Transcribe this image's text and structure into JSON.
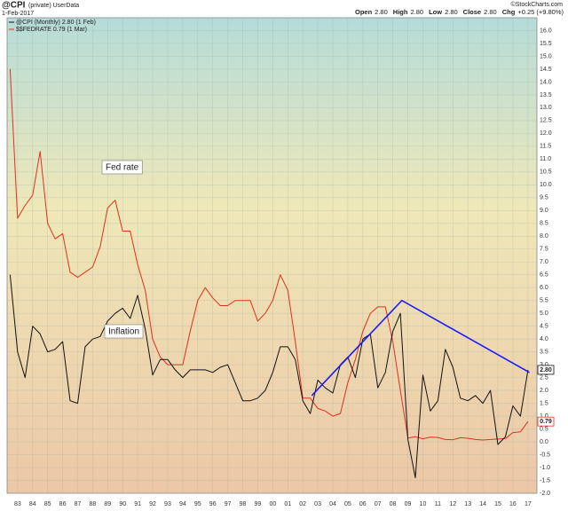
{
  "chart_data": {
    "type": "line",
    "title": "@CPI",
    "subtitle": "(private) UserData",
    "date": "1-Feb-2017",
    "credit": "©StockCharts.com",
    "quote": [
      {
        "label": "Open",
        "value": "2.80"
      },
      {
        "label": "High",
        "value": "2.80"
      },
      {
        "label": "Low",
        "value": "2.80"
      },
      {
        "label": "Close",
        "value": "2.80"
      },
      {
        "label": "Chg",
        "value": "+0.25 (+9.80%)"
      }
    ],
    "x": [
      1982.5,
      1983.0,
      1983.5,
      1984.0,
      1984.5,
      1985.0,
      1985.5,
      1986.0,
      1986.5,
      1987.0,
      1987.5,
      1988.0,
      1988.5,
      1989.0,
      1989.5,
      1990.0,
      1990.5,
      1991.0,
      1991.5,
      1992.0,
      1992.5,
      1993.0,
      1993.5,
      1994.0,
      1994.5,
      1995.0,
      1995.5,
      1996.0,
      1996.5,
      1997.0,
      1997.5,
      1998.0,
      1998.5,
      1999.0,
      1999.5,
      2000.0,
      2000.5,
      2001.0,
      2001.5,
      2002.0,
      2002.5,
      2003.0,
      2003.5,
      2004.0,
      2004.5,
      2005.0,
      2005.5,
      2006.0,
      2006.5,
      2007.0,
      2007.5,
      2008.0,
      2008.5,
      2009.0,
      2009.5,
      2010.0,
      2010.5,
      2011.0,
      2011.5,
      2012.0,
      2012.5,
      2013.0,
      2013.5,
      2014.0,
      2014.5,
      2015.0,
      2015.5,
      2016.0,
      2016.5,
      2017.0
    ],
    "series": [
      {
        "name": "@CPI (Monthly) 2.80 (1 Feb)",
        "color": "#111111",
        "last_label": "2.80",
        "values": [
          6.5,
          3.5,
          2.5,
          4.5,
          4.2,
          3.5,
          3.6,
          3.9,
          1.6,
          1.5,
          3.7,
          4.0,
          4.1,
          4.7,
          5.0,
          5.2,
          4.8,
          5.7,
          4.4,
          2.6,
          3.2,
          3.2,
          2.8,
          2.5,
          2.8,
          2.8,
          2.8,
          2.7,
          2.9,
          3.0,
          2.3,
          1.6,
          1.6,
          1.7,
          2.0,
          2.7,
          3.7,
          3.7,
          3.2,
          1.6,
          1.1,
          2.4,
          2.1,
          1.9,
          3.0,
          3.3,
          2.5,
          4.0,
          4.2,
          2.1,
          2.7,
          4.3,
          5.0,
          0.1,
          -1.4,
          2.6,
          1.2,
          1.6,
          3.6,
          2.9,
          1.7,
          1.6,
          1.8,
          1.5,
          2.0,
          -0.1,
          0.2,
          1.4,
          1.0,
          2.8
        ]
      },
      {
        "name": "$$FEDRATE 0.79 (1 Mar)",
        "color": "#e0301e",
        "last_label": "0.79",
        "values": [
          14.5,
          8.7,
          9.2,
          9.6,
          11.3,
          8.5,
          7.9,
          8.1,
          6.6,
          6.4,
          6.6,
          6.8,
          7.6,
          9.1,
          9.4,
          8.2,
          8.2,
          6.9,
          5.9,
          4.0,
          3.3,
          3.0,
          3.0,
          3.0,
          4.3,
          5.5,
          6.0,
          5.6,
          5.3,
          5.3,
          5.5,
          5.5,
          5.5,
          4.7,
          5.0,
          5.5,
          6.5,
          5.9,
          3.9,
          1.7,
          1.7,
          1.3,
          1.2,
          1.0,
          1.1,
          2.3,
          3.2,
          4.3,
          5.0,
          5.25,
          5.25,
          3.9,
          2.0,
          0.15,
          0.2,
          0.12,
          0.18,
          0.17,
          0.09,
          0.08,
          0.16,
          0.14,
          0.09,
          0.07,
          0.09,
          0.11,
          0.13,
          0.36,
          0.39,
          0.79
        ]
      }
    ],
    "trendline": {
      "color": "#1a1aff",
      "x": [
        2002.6,
        2008.6,
        2017.1
      ],
      "values": [
        1.8,
        5.5,
        2.7
      ]
    },
    "annotations": [
      "Fed rate",
      "Inflation"
    ],
    "xlim": [
      1982.3,
      2017.6
    ],
    "ylim": [
      -2.0,
      16.5
    ],
    "grid": true,
    "xticks": [
      {
        "value": 1983,
        "label": "83"
      },
      {
        "value": 1984,
        "label": "84"
      },
      {
        "value": 1985,
        "label": "85"
      },
      {
        "value": 1986,
        "label": "86"
      },
      {
        "value": 1987,
        "label": "87"
      },
      {
        "value": 1988,
        "label": "88"
      },
      {
        "value": 1989,
        "label": "89"
      },
      {
        "value": 1990,
        "label": "90"
      },
      {
        "value": 1991,
        "label": "91"
      },
      {
        "value": 1992,
        "label": "92"
      },
      {
        "value": 1993,
        "label": "93"
      },
      {
        "value": 1994,
        "label": "94"
      },
      {
        "value": 1995,
        "label": "95"
      },
      {
        "value": 1996,
        "label": "96"
      },
      {
        "value": 1997,
        "label": "97"
      },
      {
        "value": 1998,
        "label": "98"
      },
      {
        "value": 1999,
        "label": "99"
      },
      {
        "value": 2000,
        "label": "00"
      },
      {
        "value": 2001,
        "label": "01"
      },
      {
        "value": 2002,
        "label": "02"
      },
      {
        "value": 2003,
        "label": "03"
      },
      {
        "value": 2004,
        "label": "04"
      },
      {
        "value": 2005,
        "label": "05"
      },
      {
        "value": 2006,
        "label": "06"
      },
      {
        "value": 2007,
        "label": "07"
      },
      {
        "value": 2008,
        "label": "08"
      },
      {
        "value": 2009,
        "label": "09"
      },
      {
        "value": 2010,
        "label": "10"
      },
      {
        "value": 2011,
        "label": "11"
      },
      {
        "value": 2012,
        "label": "12"
      },
      {
        "value": 2013,
        "label": "13"
      },
      {
        "value": 2014,
        "label": "14"
      },
      {
        "value": 2015,
        "label": "15"
      },
      {
        "value": 2016,
        "label": "16"
      },
      {
        "value": 2017,
        "label": "17"
      }
    ],
    "yticks": [
      {
        "value": -2,
        "label": "-2.0"
      },
      {
        "value": -1.5,
        "label": "-1.5"
      },
      {
        "value": -1,
        "label": "-1.0"
      },
      {
        "value": -0.5,
        "label": "-0.5"
      },
      {
        "value": 0,
        "label": "0.0"
      },
      {
        "value": 0.5,
        "label": "0.5"
      },
      {
        "value": 1,
        "label": "1.0"
      },
      {
        "value": 1.5,
        "label": "1.5"
      },
      {
        "value": 2,
        "label": "2.0"
      },
      {
        "value": 2.5,
        "label": "2.5"
      },
      {
        "value": 3,
        "label": "3.0"
      },
      {
        "value": 3.5,
        "label": "3.5"
      },
      {
        "value": 4,
        "label": "4.0"
      },
      {
        "value": 4.5,
        "label": "4.5"
      },
      {
        "value": 5,
        "label": "5.0"
      },
      {
        "value": 5.5,
        "label": "5.5"
      },
      {
        "value": 6,
        "label": "6.0"
      },
      {
        "value": 6.5,
        "label": "6.5"
      },
      {
        "value": 7,
        "label": "7.0"
      },
      {
        "value": 7.5,
        "label": "7.5"
      },
      {
        "value": 8,
        "label": "8.0"
      },
      {
        "value": 8.5,
        "label": "8.5"
      },
      {
        "value": 9,
        "label": "9.0"
      },
      {
        "value": 9.5,
        "label": "9.5"
      },
      {
        "value": 10,
        "label": "10.0"
      },
      {
        "value": 10.5,
        "label": "10.5"
      },
      {
        "value": 11,
        "label": "11.0"
      },
      {
        "value": 11.5,
        "label": "11.5"
      },
      {
        "value": 12,
        "label": "12.0"
      },
      {
        "value": 12.5,
        "label": "12.5"
      },
      {
        "value": 13,
        "label": "13.0"
      },
      {
        "value": 13.5,
        "label": "13.5"
      },
      {
        "value": 14,
        "label": "14.0"
      },
      {
        "value": 14.5,
        "label": "14.5"
      },
      {
        "value": 15,
        "label": "15.0"
      },
      {
        "value": 15.5,
        "label": "15.5"
      },
      {
        "value": 16,
        "label": "16.0"
      }
    ]
  }
}
